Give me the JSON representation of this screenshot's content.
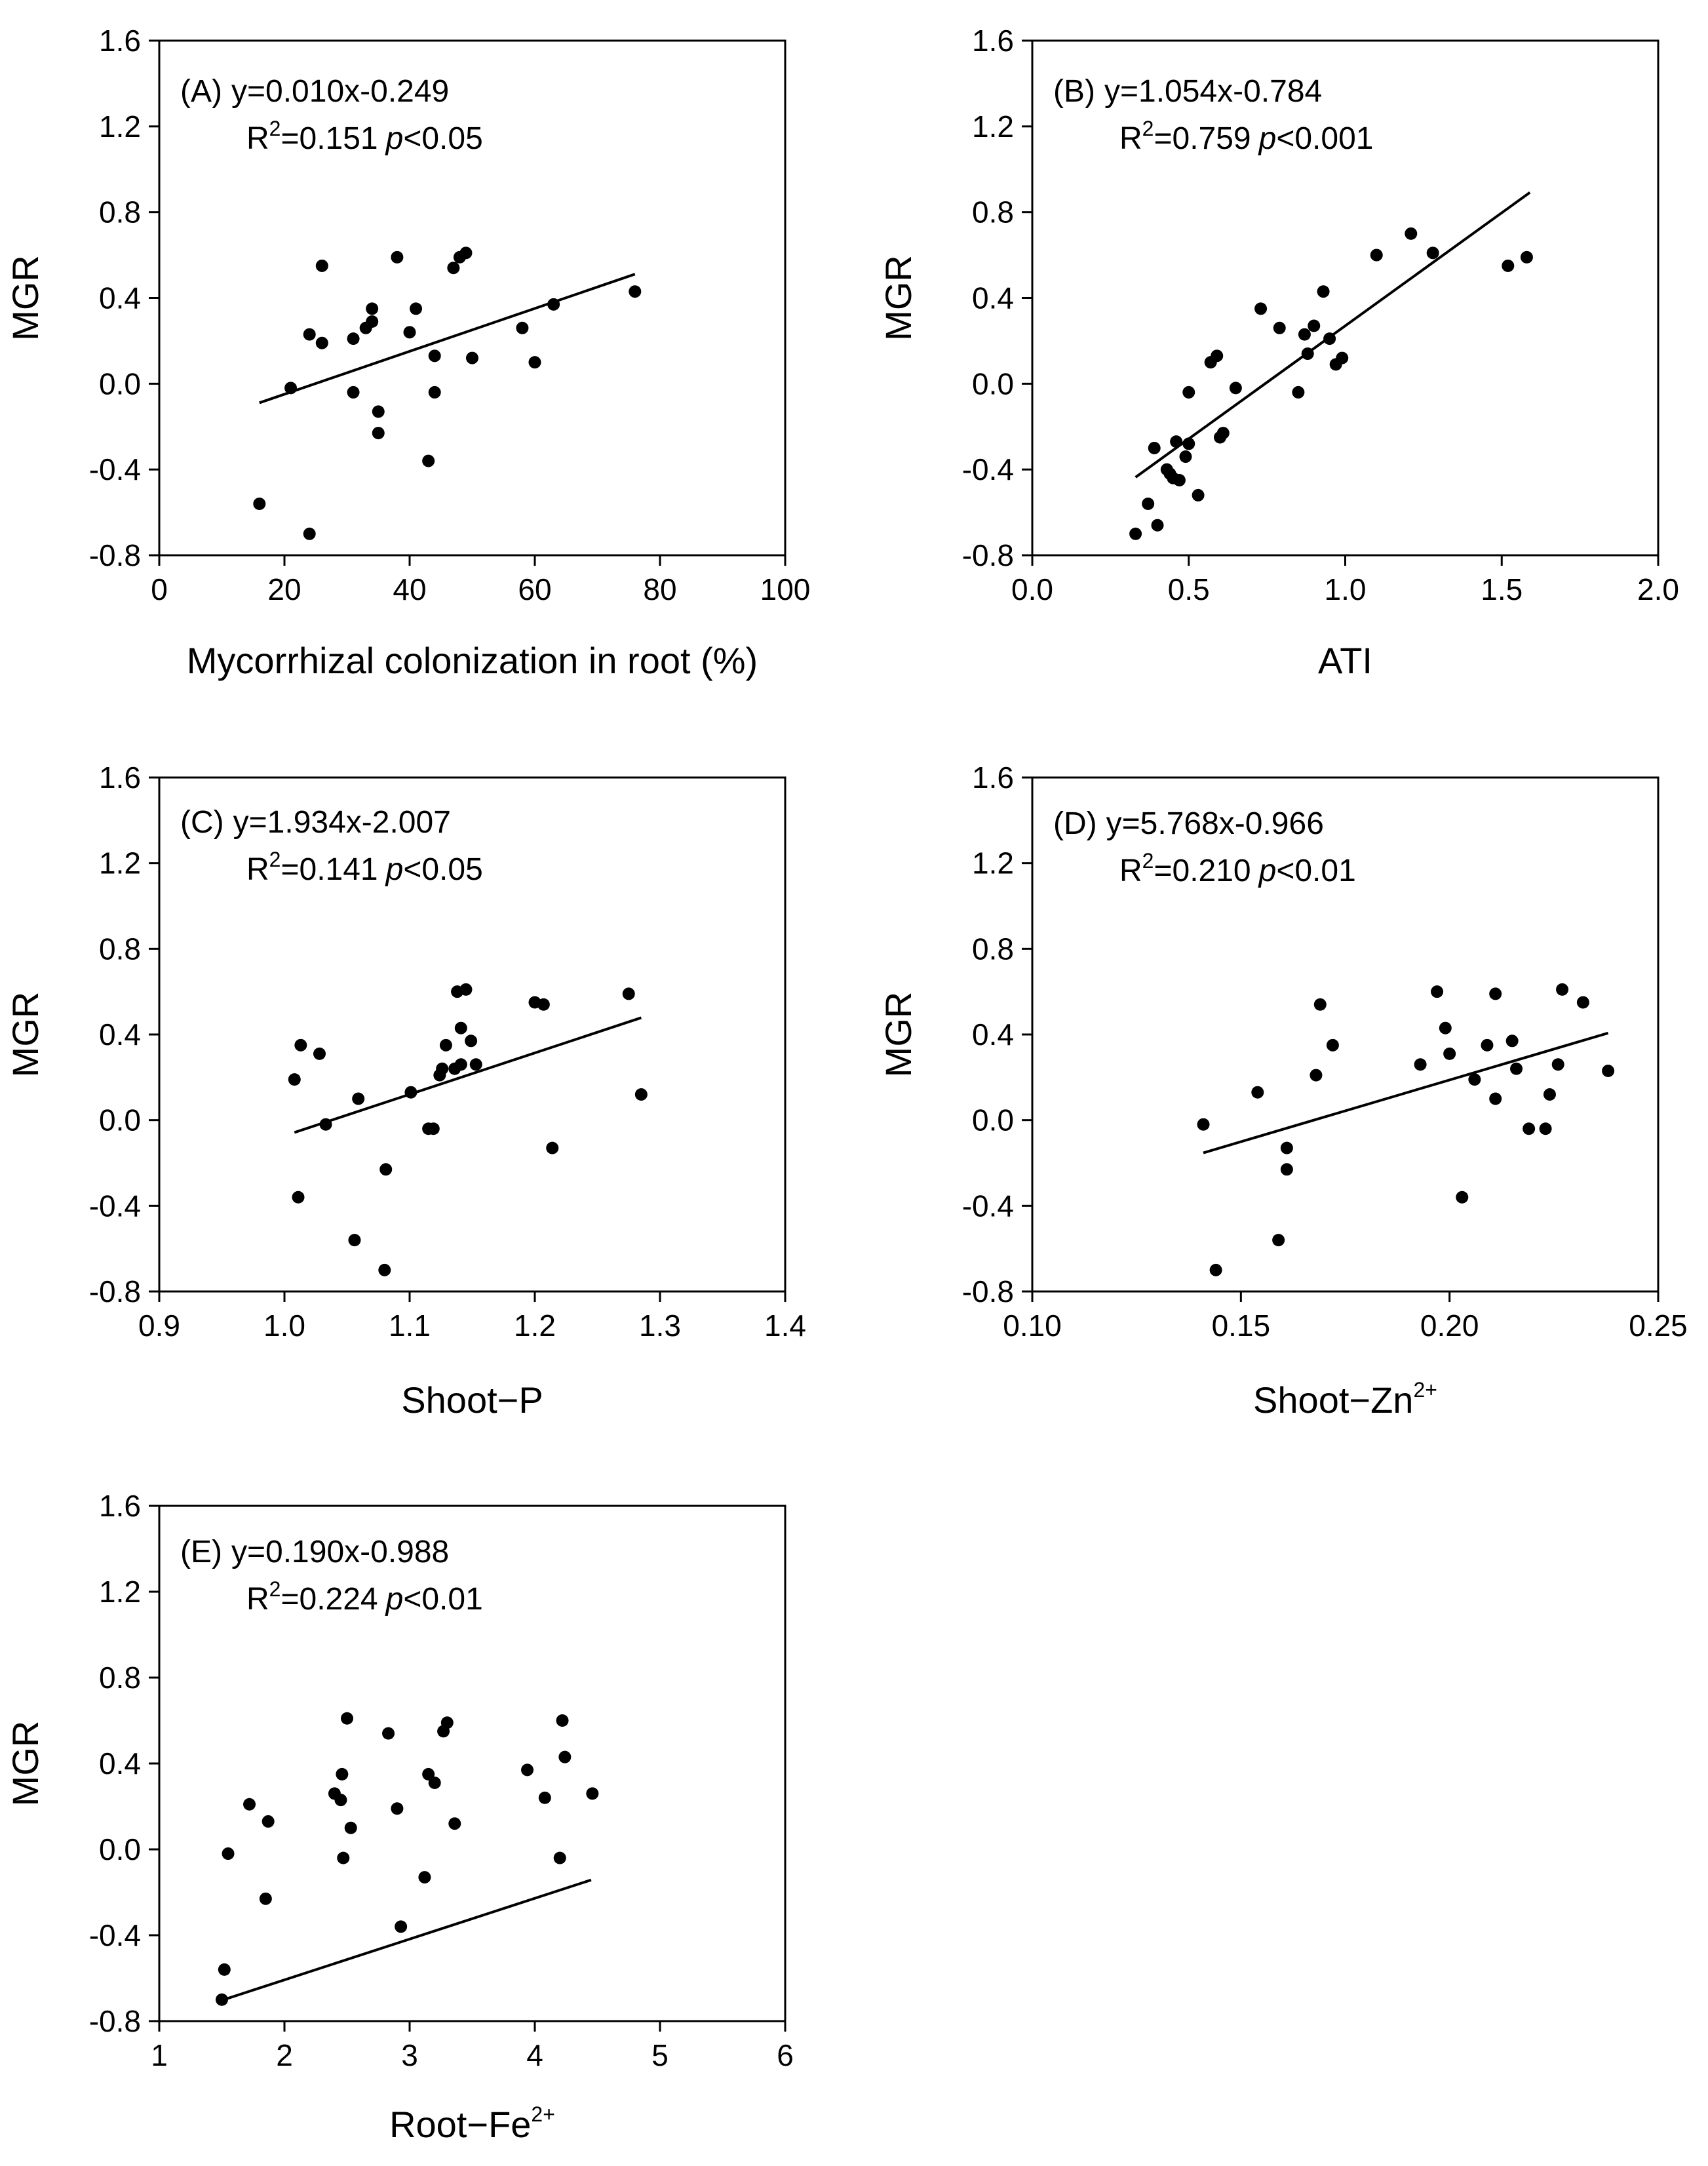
{
  "chart_data": [
    {
      "type": "scatter",
      "panel_label": "(A)",
      "equation": "y=0.010x-0.249",
      "r2_prefix": "R",
      "r2_sup": "2",
      "r2_value": "=0.151",
      "p_symbol": "p",
      "p_text": "<0.05",
      "xlabel": "Mycorrhizal colonization in root (%)",
      "xlabel_sup": "",
      "ylabel": "MGR",
      "xlim": [
        0,
        100
      ],
      "ylim": [
        -0.8,
        1.6
      ],
      "xticks": [
        0,
        20,
        40,
        60,
        80,
        100
      ],
      "xtick_labels": [
        "0",
        "20",
        "40",
        "60",
        "80",
        "100"
      ],
      "yticks": [
        -0.8,
        -0.4,
        0.0,
        0.4,
        0.8,
        1.2,
        1.6
      ],
      "ytick_labels": [
        "-0.8",
        "-0.4",
        "0.0",
        "0.4",
        "0.8",
        "1.2",
        "1.6"
      ],
      "regression": {
        "slope": 0.01,
        "intercept": -0.249,
        "x_range": [
          16,
          76
        ]
      },
      "points": [
        [
          16,
          -0.56
        ],
        [
          21,
          -0.02
        ],
        [
          24,
          -0.7
        ],
        [
          24,
          0.23
        ],
        [
          26,
          0.19
        ],
        [
          26,
          0.55
        ],
        [
          31,
          0.21
        ],
        [
          31,
          -0.04
        ],
        [
          33,
          0.26
        ],
        [
          34,
          0.29
        ],
        [
          34,
          0.35
        ],
        [
          35,
          -0.23
        ],
        [
          35,
          -0.13
        ],
        [
          38,
          0.59
        ],
        [
          40,
          0.24
        ],
        [
          41,
          0.35
        ],
        [
          43,
          -0.36
        ],
        [
          44,
          0.13
        ],
        [
          44,
          -0.04
        ],
        [
          47,
          0.54
        ],
        [
          48,
          0.59
        ],
        [
          49,
          0.61
        ],
        [
          50,
          0.12
        ],
        [
          58,
          0.26
        ],
        [
          60,
          0.1
        ],
        [
          63,
          0.37
        ],
        [
          76,
          0.43
        ]
      ]
    },
    {
      "type": "scatter",
      "panel_label": "(B)",
      "equation": "y=1.054x-0.784",
      "r2_prefix": "R",
      "r2_sup": "2",
      "r2_value": "=0.759",
      "p_symbol": "p",
      "p_text": "<0.001",
      "xlabel": "ATI",
      "xlabel_sup": "",
      "ylabel": "MGR",
      "xlim": [
        0.0,
        2.0
      ],
      "ylim": [
        -0.8,
        1.6
      ],
      "xticks": [
        0.0,
        0.5,
        1.0,
        1.5,
        2.0
      ],
      "xtick_labels": [
        "0.0",
        "0.5",
        "1.0",
        "1.5",
        "2.0"
      ],
      "yticks": [
        -0.8,
        -0.4,
        0.0,
        0.4,
        0.8,
        1.2,
        1.6
      ],
      "ytick_labels": [
        "-0.8",
        "-0.4",
        "0.0",
        "0.4",
        "0.8",
        "1.2",
        "1.6"
      ],
      "regression": {
        "slope": 1.054,
        "intercept": -0.784,
        "x_range": [
          0.33,
          1.59
        ]
      },
      "points": [
        [
          0.33,
          -0.7
        ],
        [
          0.37,
          -0.56
        ],
        [
          0.39,
          -0.3
        ],
        [
          0.4,
          -0.66
        ],
        [
          0.43,
          -0.4
        ],
        [
          0.44,
          -0.42
        ],
        [
          0.45,
          -0.44
        ],
        [
          0.46,
          -0.27
        ],
        [
          0.47,
          -0.45
        ],
        [
          0.49,
          -0.34
        ],
        [
          0.5,
          -0.28
        ],
        [
          0.5,
          -0.04
        ],
        [
          0.53,
          -0.52
        ],
        [
          0.57,
          0.1
        ],
        [
          0.59,
          0.13
        ],
        [
          0.6,
          -0.25
        ],
        [
          0.61,
          -0.23
        ],
        [
          0.65,
          -0.02
        ],
        [
          0.73,
          0.35
        ],
        [
          0.79,
          0.26
        ],
        [
          0.85,
          -0.04
        ],
        [
          0.87,
          0.23
        ],
        [
          0.88,
          0.14
        ],
        [
          0.9,
          0.27
        ],
        [
          0.93,
          0.43
        ],
        [
          0.95,
          0.21
        ],
        [
          0.97,
          0.09
        ],
        [
          0.99,
          0.12
        ],
        [
          1.1,
          0.6
        ],
        [
          1.21,
          0.7
        ],
        [
          1.28,
          0.61
        ],
        [
          1.52,
          0.55
        ],
        [
          1.58,
          0.59
        ]
      ]
    },
    {
      "type": "scatter",
      "panel_label": "(C)",
      "equation": "y=1.934x-2.007",
      "r2_prefix": "R",
      "r2_sup": "2",
      "r2_value": "=0.141",
      "p_symbol": "p",
      "p_text": "<0.05",
      "xlabel": "Shoot−P",
      "xlabel_sup": "",
      "ylabel": "MGR",
      "xlim": [
        0.9,
        1.4
      ],
      "ylim": [
        -0.8,
        1.6
      ],
      "xticks": [
        0.9,
        1.0,
        1.1,
        1.2,
        1.3,
        1.4
      ],
      "xtick_labels": [
        "0.9",
        "1.0",
        "1.1",
        "1.2",
        "1.3",
        "1.4"
      ],
      "yticks": [
        -0.8,
        -0.4,
        0.0,
        0.4,
        0.8,
        1.2,
        1.6
      ],
      "ytick_labels": [
        "-0.8",
        "-0.4",
        "0.0",
        "0.4",
        "0.8",
        "1.2",
        "1.6"
      ],
      "regression": {
        "slope": 1.934,
        "intercept": -2.007,
        "x_range": [
          1.008,
          1.285
        ]
      },
      "points": [
        [
          1.008,
          0.19
        ],
        [
          1.011,
          -0.36
        ],
        [
          1.013,
          0.35
        ],
        [
          1.028,
          0.31
        ],
        [
          1.033,
          -0.02
        ],
        [
          1.056,
          -0.56
        ],
        [
          1.059,
          0.1
        ],
        [
          1.08,
          -0.7
        ],
        [
          1.081,
          -0.23
        ],
        [
          1.101,
          0.13
        ],
        [
          1.115,
          -0.04
        ],
        [
          1.119,
          -0.04
        ],
        [
          1.124,
          0.21
        ],
        [
          1.126,
          0.24
        ],
        [
          1.129,
          0.35
        ],
        [
          1.136,
          0.24
        ],
        [
          1.138,
          0.6
        ],
        [
          1.141,
          0.26
        ],
        [
          1.141,
          0.43
        ],
        [
          1.145,
          0.61
        ],
        [
          1.149,
          0.37
        ],
        [
          1.153,
          0.26
        ],
        [
          1.2,
          0.55
        ],
        [
          1.207,
          0.54
        ],
        [
          1.214,
          -0.13
        ],
        [
          1.275,
          0.59
        ],
        [
          1.285,
          0.12
        ]
      ]
    },
    {
      "type": "scatter",
      "panel_label": "(D)",
      "equation": "y=5.768x-0.966",
      "r2_prefix": "R",
      "r2_sup": "2",
      "r2_value": "=0.210",
      "p_symbol": "p",
      "p_text": "<0.01",
      "xlabel": "Shoot−Zn",
      "xlabel_sup": "2+",
      "ylabel": "MGR",
      "xlim": [
        0.1,
        0.25
      ],
      "ylim": [
        -0.8,
        1.6
      ],
      "xticks": [
        0.1,
        0.15,
        0.2,
        0.25
      ],
      "xtick_labels": [
        "0.10",
        "0.15",
        "0.20",
        "0.25"
      ],
      "yticks": [
        -0.8,
        -0.4,
        0.0,
        0.4,
        0.8,
        1.2,
        1.6
      ],
      "ytick_labels": [
        "-0.8",
        "-0.4",
        "0.0",
        "0.4",
        "0.8",
        "1.2",
        "1.6"
      ],
      "regression": {
        "slope": 5.768,
        "intercept": -0.966,
        "x_range": [
          0.141,
          0.238
        ]
      },
      "points": [
        [
          0.141,
          -0.02
        ],
        [
          0.144,
          -0.7
        ],
        [
          0.154,
          0.13
        ],
        [
          0.159,
          -0.56
        ],
        [
          0.161,
          -0.13
        ],
        [
          0.161,
          -0.23
        ],
        [
          0.168,
          0.21
        ],
        [
          0.169,
          0.54
        ],
        [
          0.172,
          0.35
        ],
        [
          0.193,
          0.26
        ],
        [
          0.197,
          0.6
        ],
        [
          0.199,
          0.43
        ],
        [
          0.2,
          0.31
        ],
        [
          0.203,
          -0.36
        ],
        [
          0.206,
          0.19
        ],
        [
          0.209,
          0.35
        ],
        [
          0.211,
          0.59
        ],
        [
          0.211,
          0.1
        ],
        [
          0.215,
          0.37
        ],
        [
          0.216,
          0.24
        ],
        [
          0.219,
          -0.04
        ],
        [
          0.223,
          -0.04
        ],
        [
          0.224,
          0.12
        ],
        [
          0.226,
          0.26
        ],
        [
          0.227,
          0.61
        ],
        [
          0.232,
          0.55
        ],
        [
          0.238,
          0.23
        ]
      ]
    },
    {
      "type": "scatter",
      "panel_label": "(E)",
      "equation": "y=0.190x-0.988",
      "r2_prefix": "R",
      "r2_sup": "2",
      "r2_value": "=0.224",
      "p_symbol": "p",
      "p_text": "<0.01",
      "xlabel": "Root−Fe",
      "xlabel_sup": "2+",
      "ylabel": "MGR",
      "xlim": [
        1,
        6
      ],
      "ylim": [
        -0.8,
        1.6
      ],
      "xticks": [
        1,
        2,
        3,
        4,
        5,
        6
      ],
      "xtick_labels": [
        "1",
        "2",
        "3",
        "4",
        "5",
        "6"
      ],
      "yticks": [
        -0.8,
        -0.4,
        0.0,
        0.4,
        0.8,
        1.2,
        1.6
      ],
      "ytick_labels": [
        "-0.8",
        "-0.4",
        "0.0",
        "0.4",
        "0.8",
        "1.2",
        "1.6"
      ],
      "regression": {
        "slope": 0.19,
        "intercept": -0.988,
        "x_range": [
          1.5,
          4.45
        ]
      },
      "points": [
        [
          1.5,
          -0.7
        ],
        [
          1.52,
          -0.56
        ],
        [
          1.55,
          -0.02
        ],
        [
          1.72,
          0.21
        ],
        [
          1.85,
          -0.23
        ],
        [
          1.87,
          0.13
        ],
        [
          2.4,
          0.26
        ],
        [
          2.45,
          0.23
        ],
        [
          2.46,
          0.35
        ],
        [
          2.47,
          -0.04
        ],
        [
          2.5,
          0.61
        ],
        [
          2.53,
          0.1
        ],
        [
          2.83,
          0.54
        ],
        [
          2.9,
          0.19
        ],
        [
          2.93,
          -0.36
        ],
        [
          3.12,
          -0.13
        ],
        [
          3.15,
          0.35
        ],
        [
          3.2,
          0.31
        ],
        [
          3.27,
          0.55
        ],
        [
          3.3,
          0.59
        ],
        [
          3.36,
          0.12
        ],
        [
          3.94,
          0.37
        ],
        [
          4.08,
          0.24
        ],
        [
          4.2,
          -0.04
        ],
        [
          4.22,
          0.6
        ],
        [
          4.24,
          0.43
        ],
        [
          4.46,
          0.26
        ]
      ]
    }
  ]
}
